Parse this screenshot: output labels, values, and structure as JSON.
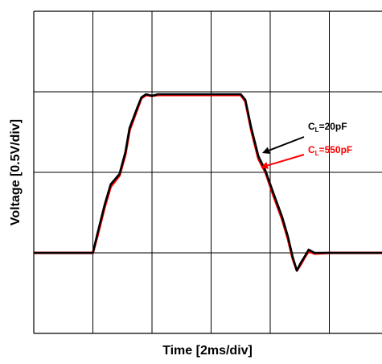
{
  "chart_data": {
    "type": "line",
    "xlabel": "Time [2ms/div]",
    "ylabel": "Voltage [0.5V/div]",
    "x_unit": "div",
    "y_unit": "div",
    "xlim": [
      0,
      5.9
    ],
    "ylim": [
      0,
      4
    ],
    "grid": true,
    "series": [
      {
        "name": "CL=20pF",
        "color": "#000000",
        "points": [
          [
            0,
            1
          ],
          [
            1,
            1
          ],
          [
            1.08,
            1.25
          ],
          [
            1.2,
            1.6
          ],
          [
            1.3,
            1.85
          ],
          [
            1.45,
            1.98
          ],
          [
            1.55,
            2.25
          ],
          [
            1.62,
            2.55
          ],
          [
            1.75,
            2.8
          ],
          [
            1.82,
            2.93
          ],
          [
            1.9,
            2.97
          ],
          [
            2.0,
            2.95
          ],
          [
            2.1,
            2.97
          ],
          [
            2.5,
            2.97
          ],
          [
            3.0,
            2.97
          ],
          [
            3.5,
            2.97
          ],
          [
            3.58,
            2.9
          ],
          [
            3.68,
            2.55
          ],
          [
            3.8,
            2.2
          ],
          [
            3.92,
            2.02
          ],
          [
            4.05,
            1.75
          ],
          [
            4.2,
            1.45
          ],
          [
            4.3,
            1.2
          ],
          [
            4.38,
            0.95
          ],
          [
            4.45,
            0.78
          ],
          [
            4.52,
            0.88
          ],
          [
            4.58,
            0.95
          ],
          [
            4.65,
            1.04
          ],
          [
            4.75,
            1.0
          ],
          [
            5.0,
            1.0
          ],
          [
            5.9,
            1.0
          ]
        ]
      },
      {
        "name": "CL=550pF",
        "color": "#ff0000",
        "points": [
          [
            0,
            1
          ],
          [
            1,
            1
          ],
          [
            1.08,
            1.22
          ],
          [
            1.2,
            1.57
          ],
          [
            1.3,
            1.82
          ],
          [
            1.45,
            1.96
          ],
          [
            1.55,
            2.22
          ],
          [
            1.62,
            2.52
          ],
          [
            1.75,
            2.78
          ],
          [
            1.82,
            2.92
          ],
          [
            1.9,
            2.96
          ],
          [
            2.0,
            2.95
          ],
          [
            2.1,
            2.96
          ],
          [
            2.5,
            2.96
          ],
          [
            3.0,
            2.96
          ],
          [
            3.5,
            2.96
          ],
          [
            3.58,
            2.88
          ],
          [
            3.68,
            2.52
          ],
          [
            3.8,
            2.17
          ],
          [
            3.92,
            2.0
          ],
          [
            4.05,
            1.72
          ],
          [
            4.2,
            1.42
          ],
          [
            4.3,
            1.17
          ],
          [
            4.38,
            0.93
          ],
          [
            4.45,
            0.78
          ],
          [
            4.52,
            0.86
          ],
          [
            4.58,
            0.94
          ],
          [
            4.65,
            1.02
          ],
          [
            4.75,
            0.99
          ],
          [
            5.0,
            1.0
          ],
          [
            5.9,
            1.0
          ]
        ]
      }
    ],
    "annotations": [
      {
        "base": "C",
        "sub": "L",
        "rest": "=20pF",
        "color": "#000000",
        "series": 0
      },
      {
        "base": "C",
        "sub": "L",
        "rest": "=550pF",
        "color": "#ff0000",
        "series": 1
      }
    ]
  }
}
